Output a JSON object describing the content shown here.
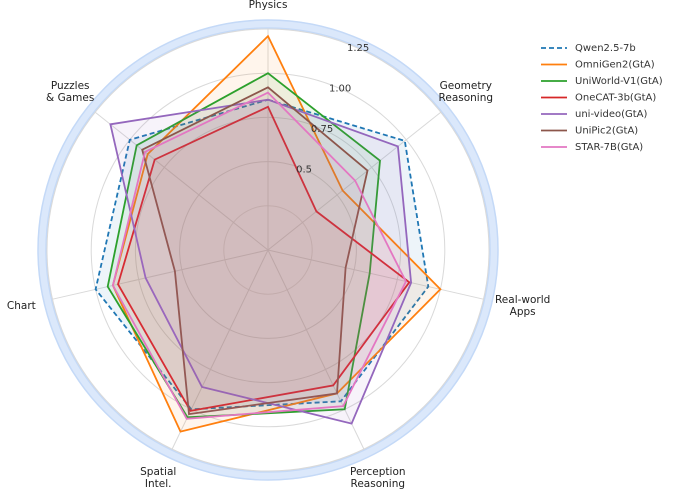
{
  "chart_data": {
    "type": "radar",
    "categories": [
      "Physics",
      "Geometry\nReasoning",
      "Real-world\nApps",
      "Perception\nReasoning",
      "Spatial\nIntel.",
      "Chart",
      "Puzzles\n& Games"
    ],
    "ylim": [
      0,
      1.25
    ],
    "yticks": [
      0.5,
      0.75,
      {
        "value": 1.0,
        "label": "1.00"
      },
      1.25
    ],
    "series": [
      {
        "name": "Qwen2.5-7b",
        "color": "#1f77b4",
        "linestyle": "dashed",
        "values": [
          0.85,
          0.99,
          0.93,
          0.95,
          1.0,
          1.0,
          1.0
        ]
      },
      {
        "name": "OmniGen2(GtA)",
        "color": "#ff7f0e",
        "values": [
          1.21,
          0.54,
          1.0,
          0.9,
          1.14,
          0.9,
          0.87
        ]
      },
      {
        "name": "UniWorld-V1(GtA)",
        "color": "#2ca02c",
        "values": [
          1.0,
          0.81,
          0.59,
          1.0,
          1.05,
          0.93,
          0.95
        ]
      },
      {
        "name": "OneCAT-3b(GtA)",
        "color": "#d62728",
        "values": [
          0.81,
          0.35,
          0.82,
          0.85,
          1.01,
          0.87,
          0.82
        ]
      },
      {
        "name": "uni-video(GtA)",
        "color": "#9467bd",
        "values": [
          0.85,
          0.94,
          0.83,
          1.09,
          0.86,
          0.71,
          1.14
        ]
      },
      {
        "name": "UniPic2(GtA)",
        "color": "#8c564b",
        "values": [
          0.92,
          0.72,
          0.45,
          0.9,
          1.03,
          0.54,
          0.91
        ]
      },
      {
        "name": "STAR-7B(GtA)",
        "color": "#e377c2",
        "values": [
          0.89,
          0.63,
          0.8,
          0.98,
          1.06,
          0.9,
          0.89
        ]
      }
    ]
  }
}
